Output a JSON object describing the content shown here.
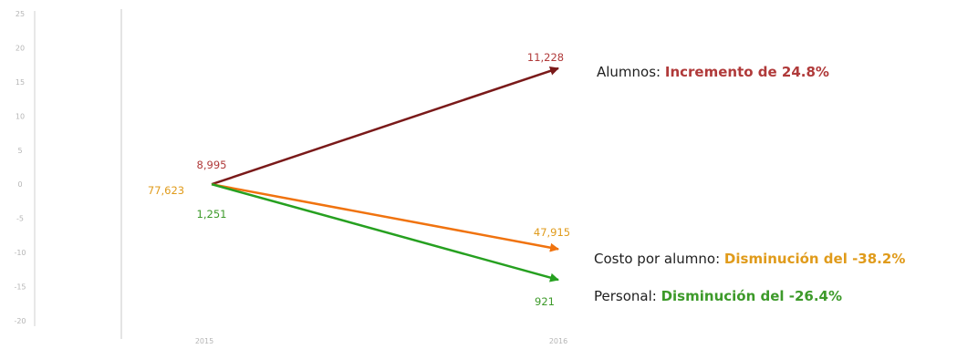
{
  "chart_data": {
    "type": "line",
    "title": "",
    "xlabel": "",
    "ylabel": "",
    "ylim": [
      -20,
      25
    ],
    "yticks": [
      "25",
      "20",
      "15",
      "10",
      "5",
      "0",
      "-5",
      "-10",
      "-15",
      "-20"
    ],
    "x": [
      "2015",
      "2016"
    ],
    "grid": false,
    "series": [
      {
        "key": "alumnos",
        "color": "#7a1a1a",
        "label_color": "#b03a3a",
        "y": [
          0,
          17
        ],
        "point_labels": [
          "8,995",
          "11,228"
        ],
        "legend_lead": "Alumnos: ",
        "legend_highlight": "Incremento de 24.8%"
      },
      {
        "key": "costo",
        "color": "#f0730f",
        "label_color": "#e09b1b",
        "y": [
          0,
          -9.5
        ],
        "point_labels": [
          "77,623",
          "47,915"
        ],
        "legend_lead": "Costo por alumno: ",
        "legend_highlight": "Disminución del -38.2%"
      },
      {
        "key": "personal",
        "color": "#26a020",
        "label_color": "#3d9a2a",
        "y": [
          0,
          -14
        ],
        "point_labels": [
          "1,251",
          "921"
        ],
        "legend_lead": "Personal: ",
        "legend_highlight": "Disminución del -26.4%"
      }
    ]
  }
}
